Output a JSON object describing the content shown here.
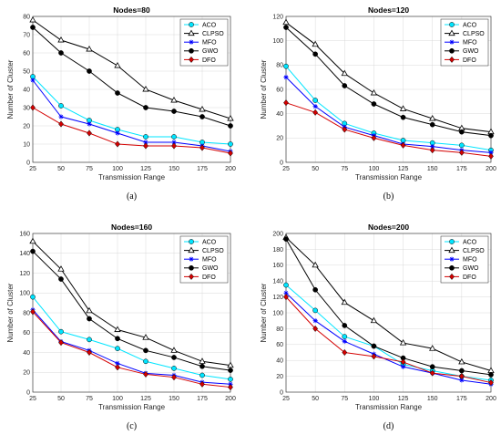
{
  "chart_data": [
    {
      "type": "line",
      "title": "Nodes=80",
      "xlabel": "Transmission Range",
      "ylabel": "Number of Cluster",
      "caption": "(a)",
      "x": [
        25,
        50,
        75,
        100,
        125,
        150,
        175,
        200
      ],
      "xlim": [
        25,
        200
      ],
      "ylim": [
        0,
        80
      ],
      "yticks": [
        0,
        10,
        20,
        30,
        40,
        50,
        60,
        70,
        80
      ],
      "grid": true,
      "legend": "top-right",
      "series": [
        {
          "name": "ACO",
          "color": "#00e5ff",
          "marker": "circle",
          "values": [
            47,
            31,
            23,
            18,
            14,
            14,
            11,
            10
          ]
        },
        {
          "name": "CLPSO",
          "color": "#000000",
          "marker": "triangle",
          "values": [
            78,
            67,
            62,
            53,
            40,
            34,
            29,
            24
          ]
        },
        {
          "name": "MFO",
          "color": "#0000ff",
          "marker": "star",
          "values": [
            45,
            25,
            21,
            16,
            11,
            11,
            9,
            6
          ]
        },
        {
          "name": "GWO",
          "color": "#000000",
          "marker": "circle",
          "values": [
            74,
            60,
            50,
            38,
            30,
            28,
            25,
            20
          ]
        },
        {
          "name": "DFO",
          "color": "#d40000",
          "marker": "diamond",
          "values": [
            30,
            21,
            16,
            10,
            9,
            9,
            8,
            5
          ]
        }
      ]
    },
    {
      "type": "line",
      "title": "Nodes=120",
      "xlabel": "Transmission Range",
      "ylabel": "Number of Cluster",
      "caption": "(b)",
      "x": [
        25,
        50,
        75,
        100,
        125,
        150,
        175,
        200
      ],
      "xlim": [
        25,
        200
      ],
      "ylim": [
        0,
        120
      ],
      "yticks": [
        0,
        20,
        40,
        60,
        80,
        100,
        120
      ],
      "grid": true,
      "legend": "top-right",
      "series": [
        {
          "name": "ACO",
          "color": "#00e5ff",
          "marker": "circle",
          "values": [
            79,
            51,
            32,
            24,
            18,
            16,
            14,
            10
          ]
        },
        {
          "name": "CLPSO",
          "color": "#000000",
          "marker": "triangle",
          "values": [
            115,
            97,
            73,
            57,
            44,
            36,
            28,
            25
          ]
        },
        {
          "name": "MFO",
          "color": "#0000ff",
          "marker": "star",
          "values": [
            70,
            46,
            29,
            22,
            15,
            13,
            10,
            8
          ]
        },
        {
          "name": "GWO",
          "color": "#000000",
          "marker": "circle",
          "values": [
            111,
            89,
            63,
            48,
            37,
            31,
            25,
            22
          ]
        },
        {
          "name": "DFO",
          "color": "#d40000",
          "marker": "diamond",
          "values": [
            49,
            41,
            27,
            20,
            14,
            10,
            8,
            5
          ]
        }
      ]
    },
    {
      "type": "line",
      "title": "Nodes=160",
      "xlabel": "Transmission Range",
      "ylabel": "Number of Cluster",
      "caption": "(c)",
      "x": [
        25,
        50,
        75,
        100,
        125,
        150,
        175,
        200
      ],
      "xlim": [
        25,
        200
      ],
      "ylim": [
        0,
        160
      ],
      "yticks": [
        0,
        20,
        40,
        60,
        80,
        100,
        120,
        140,
        160
      ],
      "grid": true,
      "legend": "top-right",
      "series": [
        {
          "name": "ACO",
          "color": "#00e5ff",
          "marker": "circle",
          "values": [
            96,
            61,
            53,
            44,
            31,
            24,
            17,
            13
          ]
        },
        {
          "name": "CLPSO",
          "color": "#000000",
          "marker": "triangle",
          "values": [
            152,
            124,
            82,
            63,
            55,
            42,
            31,
            27
          ]
        },
        {
          "name": "MFO",
          "color": "#0000ff",
          "marker": "star",
          "values": [
            83,
            51,
            42,
            29,
            19,
            17,
            10,
            8
          ]
        },
        {
          "name": "GWO",
          "color": "#000000",
          "marker": "circle",
          "values": [
            142,
            114,
            74,
            54,
            42,
            35,
            26,
            22
          ]
        },
        {
          "name": "DFO",
          "color": "#d40000",
          "marker": "diamond",
          "values": [
            81,
            50,
            40,
            25,
            18,
            15,
            8,
            5
          ]
        }
      ]
    },
    {
      "type": "line",
      "title": "Nodes=200",
      "xlabel": "Transmission Range",
      "ylabel": "Number of Cluster",
      "caption": "(d)",
      "x": [
        25,
        50,
        75,
        100,
        125,
        150,
        175,
        200
      ],
      "xlim": [
        25,
        200
      ],
      "ylim": [
        0,
        200
      ],
      "yticks": [
        0,
        20,
        40,
        60,
        80,
        100,
        120,
        140,
        160,
        180,
        200
      ],
      "grid": true,
      "legend": "top-right",
      "series": [
        {
          "name": "ACO",
          "color": "#00e5ff",
          "marker": "circle",
          "values": [
            135,
            103,
            70,
            58,
            35,
            27,
            20,
            15
          ]
        },
        {
          "name": "CLPSO",
          "color": "#000000",
          "marker": "triangle",
          "values": [
            195,
            160,
            113,
            90,
            62,
            55,
            38,
            27
          ]
        },
        {
          "name": "MFO",
          "color": "#0000ff",
          "marker": "star",
          "values": [
            125,
            90,
            64,
            48,
            32,
            24,
            15,
            10
          ]
        },
        {
          "name": "GWO",
          "color": "#000000",
          "marker": "circle",
          "values": [
            193,
            129,
            84,
            58,
            43,
            32,
            27,
            22
          ]
        },
        {
          "name": "DFO",
          "color": "#d40000",
          "marker": "diamond",
          "values": [
            120,
            80,
            50,
            45,
            38,
            24,
            20,
            12
          ]
        }
      ]
    }
  ]
}
